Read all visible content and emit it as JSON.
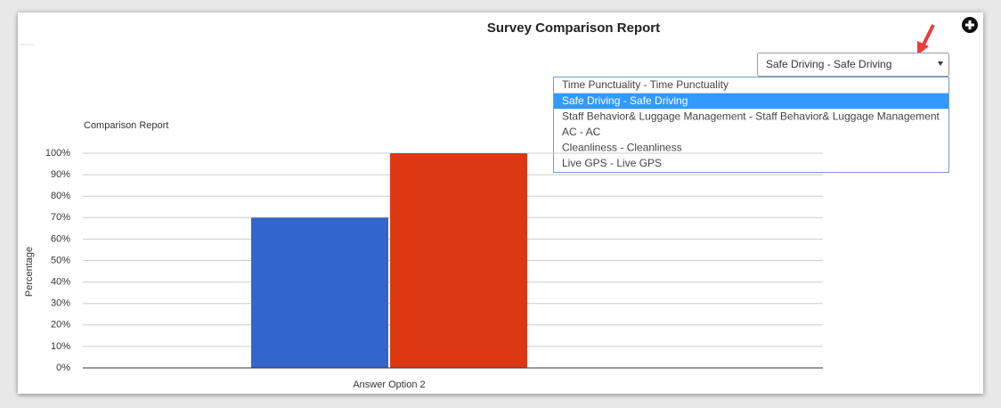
{
  "title": "Survey Comparison Report",
  "dropdown": {
    "selected": "Safe Driving - Safe Driving",
    "options": [
      "Time Punctuality - Time Punctuality",
      "Safe Driving - Safe Driving",
      "Staff Behavior& Luggage Management - Staff Behavior& Luggage Management",
      "AC - AC",
      "Cleanliness - Cleanliness",
      "Live GPS - Live GPS"
    ]
  },
  "chart_data": {
    "type": "bar",
    "title": "Comparison Report",
    "y_label": "Percentage",
    "categories": [
      "Answer Option 2"
    ],
    "series": [
      {
        "color": "#3366cc",
        "values": [
          70
        ]
      },
      {
        "color": "#dc3912",
        "values": [
          100
        ]
      }
    ],
    "ylim": [
      0,
      100
    ],
    "yticks": [
      {
        "value": 0,
        "label": "0%"
      },
      {
        "value": 10,
        "label": "10%"
      },
      {
        "value": 20,
        "label": "20%"
      },
      {
        "value": 30,
        "label": "30%"
      },
      {
        "value": 40,
        "label": "40%"
      },
      {
        "value": 50,
        "label": "50%"
      },
      {
        "value": 60,
        "label": "60%"
      },
      {
        "value": 70,
        "label": "70%"
      },
      {
        "value": 80,
        "label": "80%"
      },
      {
        "value": 90,
        "label": "90%"
      },
      {
        "value": 100,
        "label": "100%"
      }
    ],
    "grid": true
  }
}
